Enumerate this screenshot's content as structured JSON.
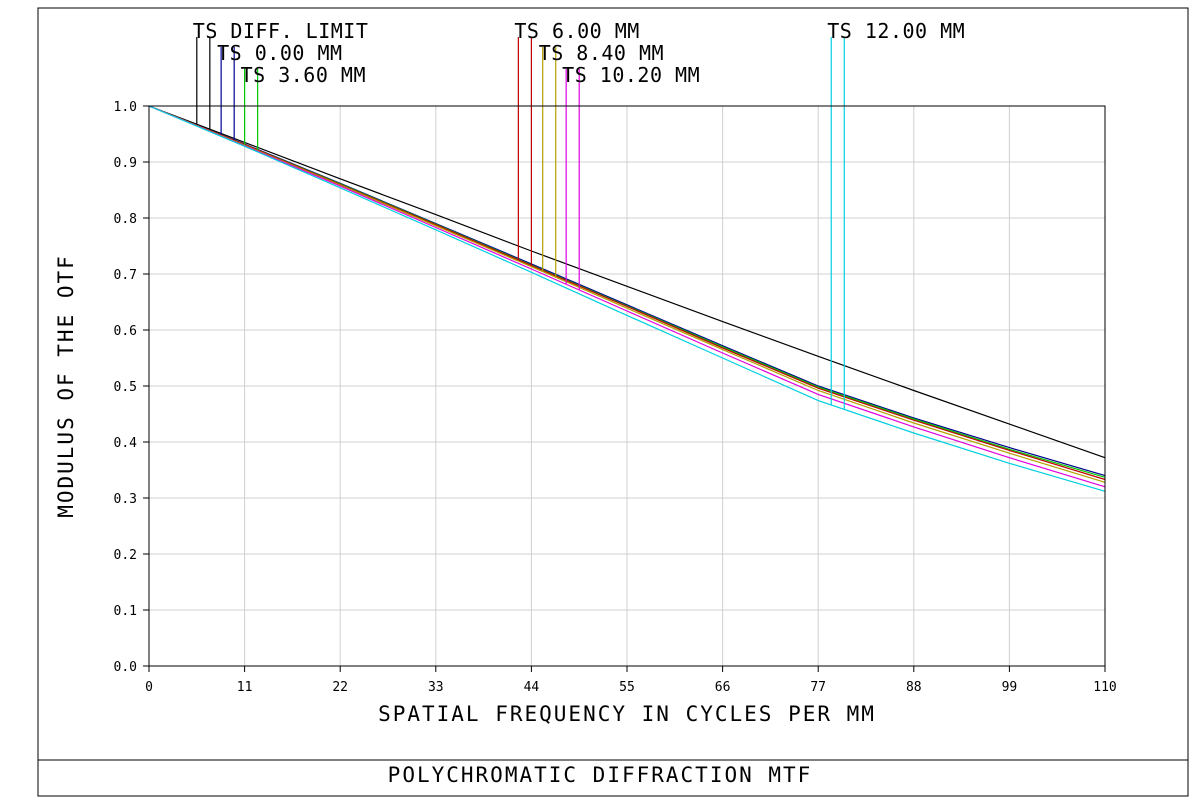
{
  "chart_data": {
    "type": "line",
    "title": "POLYCHROMATIC DIFFRACTION MTF",
    "xlabel": "SPATIAL FREQUENCY IN CYCLES PER MM",
    "ylabel": "MODULUS OF THE OTF",
    "xlim": [
      0,
      110
    ],
    "ylim": [
      0,
      1.0
    ],
    "grid": true,
    "x_ticks": [
      0,
      11,
      22,
      33,
      44,
      55,
      66,
      77,
      88,
      99,
      110
    ],
    "x_tick_labels": [
      "0",
      "11",
      "22",
      "33",
      "44",
      "55",
      "66",
      "77",
      "88",
      "99",
      "110"
    ],
    "y_ticks": [
      0,
      0.1,
      0.2,
      0.3,
      0.4,
      0.5,
      0.6,
      0.7,
      0.8,
      0.9,
      1.0
    ],
    "y_tick_labels": [
      "0.0",
      "0.1",
      "0.2",
      "0.3",
      "0.4",
      "0.5",
      "0.6",
      "0.7",
      "0.8",
      "0.9",
      "1.0"
    ],
    "x": [
      0,
      11,
      22,
      33,
      44,
      55,
      66,
      77,
      88,
      99,
      110
    ],
    "series": [
      {
        "name": "TS DIFF. LIMIT",
        "color": "#000000",
        "dashed": false,
        "values": [
          1.0,
          0.935,
          0.87,
          0.806,
          0.741,
          0.678,
          0.615,
          0.553,
          0.492,
          0.432,
          0.372
        ]
      },
      {
        "name": "TS 0.00 MM",
        "color": "#000090",
        "dashed": false,
        "values": [
          1.0,
          0.932,
          0.862,
          0.79,
          0.718,
          0.645,
          0.572,
          0.5,
          0.443,
          0.39,
          0.34
        ]
      },
      {
        "name": "TS 3.60 MM",
        "color": "#00c800",
        "dashed": false,
        "values": [
          1.0,
          0.931,
          0.861,
          0.789,
          0.716,
          0.643,
          0.57,
          0.498,
          0.441,
          0.387,
          0.337
        ]
      },
      {
        "name": "TS 6.00 MM",
        "color": "#c00000",
        "dashed": false,
        "values": [
          1.0,
          0.931,
          0.86,
          0.788,
          0.715,
          0.642,
          0.568,
          0.496,
          0.439,
          0.385,
          0.333
        ]
      },
      {
        "name": "TS 8.40 MM",
        "color": "#b4a000",
        "dashed": false,
        "values": [
          1.0,
          0.93,
          0.859,
          0.786,
          0.713,
          0.639,
          0.565,
          0.492,
          0.434,
          0.38,
          0.328
        ]
      },
      {
        "name": "TS 10.20 MM",
        "color": "#e000e0",
        "dashed": false,
        "values": [
          1.0,
          0.929,
          0.857,
          0.783,
          0.709,
          0.634,
          0.559,
          0.485,
          0.427,
          0.372,
          0.32
        ]
      },
      {
        "name": "TS 12.00 MM",
        "color": "#00d0e0",
        "dashed": false,
        "values": [
          1.0,
          0.928,
          0.854,
          0.779,
          0.703,
          0.626,
          0.55,
          0.474,
          0.416,
          0.362,
          0.312
        ]
      }
    ],
    "legend_labels": [
      {
        "text": "TS DIFF. LIMIT",
        "color": "#000000",
        "x_data": [
          5.5,
          7.0
        ]
      },
      {
        "text": "TS 0.00 MM",
        "color": "#000090",
        "x_data": [
          8.3,
          9.8
        ]
      },
      {
        "text": "TS 3.60 MM",
        "color": "#00c800",
        "x_data": [
          11.0,
          12.5
        ]
      },
      {
        "text": "TS 6.00 MM",
        "color": "#c00000",
        "x_data": [
          42.5,
          44.0
        ]
      },
      {
        "text": "TS 8.40 MM",
        "color": "#b4a000",
        "x_data": [
          45.3,
          46.8
        ]
      },
      {
        "text": "TS 10.20 MM",
        "color": "#e000e0",
        "x_data": [
          48.0,
          49.5
        ]
      },
      {
        "text": "TS 12.00 MM",
        "color": "#00d0e0",
        "x_data": [
          78.5,
          80.0
        ]
      }
    ]
  }
}
